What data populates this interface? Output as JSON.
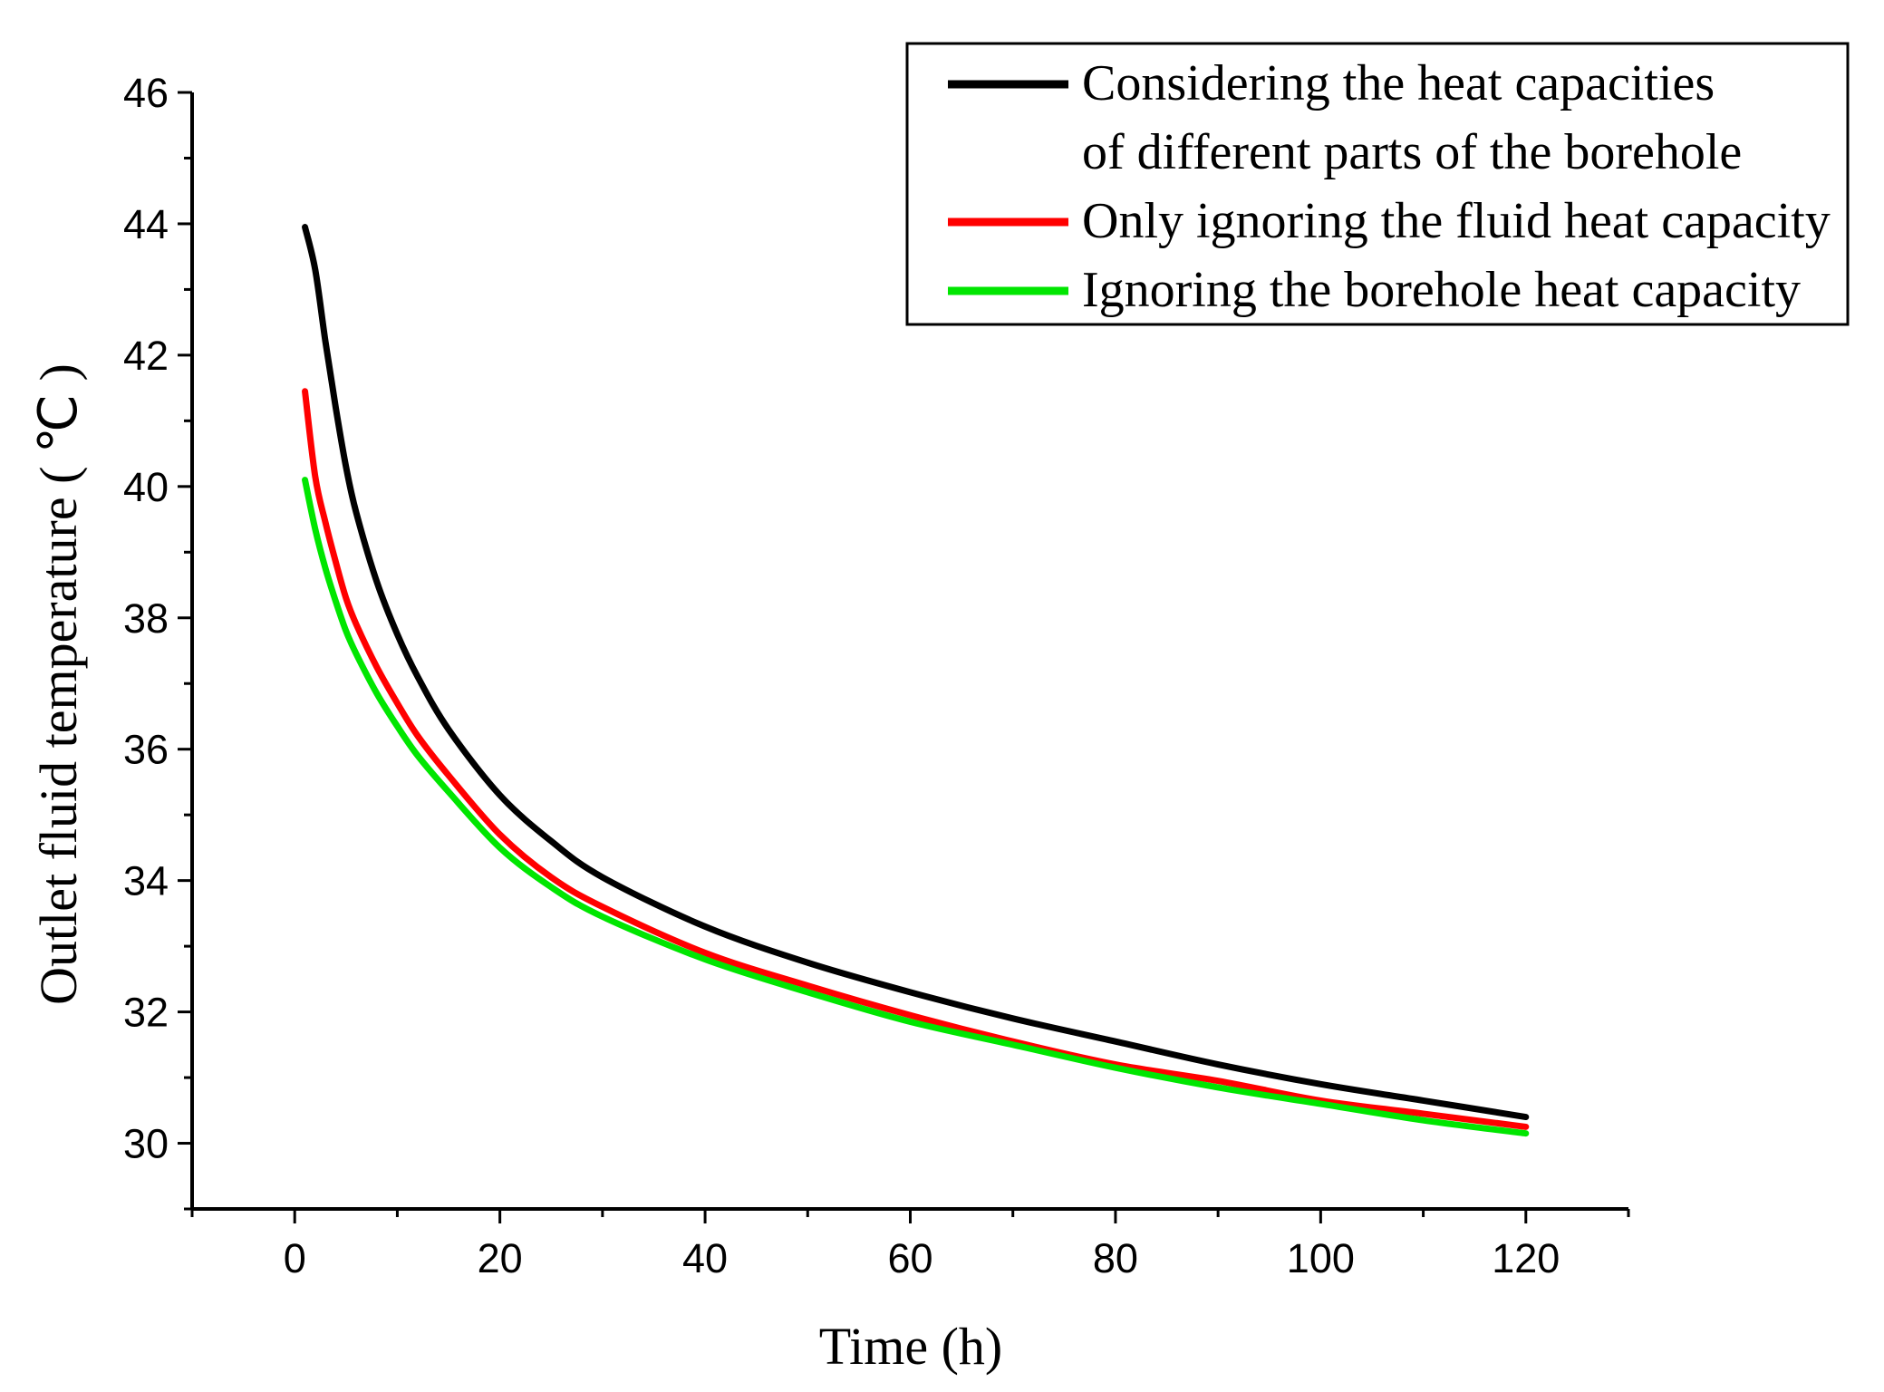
{
  "chart_data": {
    "type": "line",
    "xlabel": "Time (h)",
    "ylabel": "Outlet fluid temperature ( ℃ )",
    "xlim": [
      -10,
      130
    ],
    "ylim": [
      29,
      46
    ],
    "xticks": [
      0,
      20,
      40,
      60,
      80,
      100,
      120
    ],
    "yticks": [
      30,
      32,
      34,
      36,
      38,
      40,
      42,
      44,
      46
    ],
    "x_minor_step": 10,
    "y_minor_step": 1,
    "grid": false,
    "legend_position": "top-right",
    "legend_lines": [
      [
        "Considering the heat capacities",
        "of different parts of the borehole"
      ],
      [
        "Only ignoring the fluid heat capacity"
      ],
      [
        "Ignoring the borehole heat capacity"
      ]
    ],
    "series": [
      {
        "color": "#000000",
        "x": [
          1,
          2,
          3,
          4,
          5,
          6,
          8,
          10,
          12,
          15,
          20,
          25,
          30,
          40,
          50,
          60,
          70,
          80,
          90,
          100,
          110,
          120
        ],
        "values": [
          43.95,
          43.3,
          42.2,
          41.2,
          40.3,
          39.6,
          38.55,
          37.75,
          37.1,
          36.3,
          35.3,
          34.6,
          34.05,
          33.3,
          32.75,
          32.3,
          31.9,
          31.55,
          31.2,
          30.9,
          30.65,
          30.4
        ]
      },
      {
        "color": "#ff0000",
        "x": [
          1,
          2,
          3,
          4,
          5,
          6,
          8,
          10,
          12,
          15,
          20,
          25,
          30,
          40,
          50,
          60,
          70,
          80,
          90,
          100,
          110,
          120
        ],
        "values": [
          41.45,
          40.15,
          39.45,
          38.85,
          38.3,
          37.9,
          37.25,
          36.7,
          36.2,
          35.6,
          34.7,
          34.05,
          33.6,
          32.9,
          32.4,
          31.95,
          31.55,
          31.2,
          30.95,
          30.65,
          30.45,
          30.25
        ]
      },
      {
        "color": "#00e600",
        "x": [
          1,
          2,
          3,
          4,
          5,
          6,
          8,
          10,
          12,
          15,
          20,
          25,
          30,
          40,
          50,
          60,
          70,
          80,
          90,
          100,
          110,
          120
        ],
        "values": [
          40.1,
          39.35,
          38.75,
          38.25,
          37.8,
          37.45,
          36.85,
          36.35,
          35.9,
          35.35,
          34.5,
          33.9,
          33.45,
          32.8,
          32.3,
          31.85,
          31.5,
          31.15,
          30.85,
          30.6,
          30.35,
          30.15
        ]
      }
    ]
  }
}
